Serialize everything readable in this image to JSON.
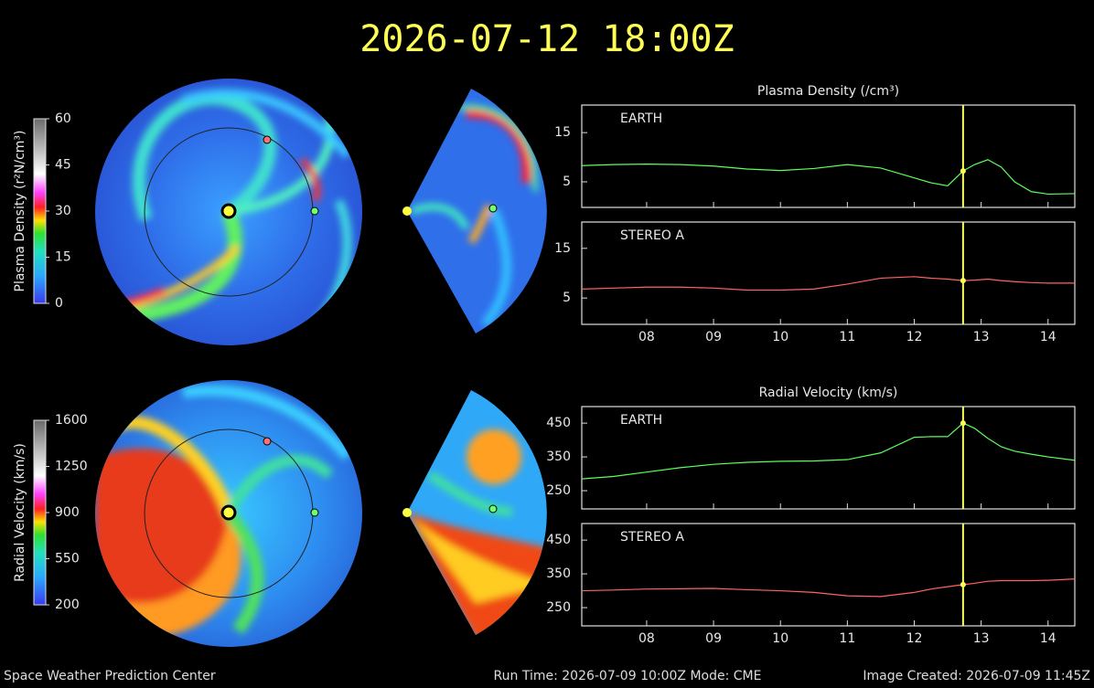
{
  "header": {
    "title": "2026-07-12 18:00Z"
  },
  "colorbars": [
    {
      "label": "Plasma Density (r²N/cm³)",
      "lim": [
        0,
        60
      ],
      "ticks": [
        0,
        15,
        30,
        45,
        60
      ]
    },
    {
      "label": "Radial Velocity (km/s)",
      "lim": [
        200,
        1600
      ],
      "ticks": [
        200,
        550,
        900,
        1250,
        1600
      ]
    }
  ],
  "chart_data": [
    {
      "type": "line",
      "title": "Plasma Density (/cm³)",
      "x": [
        7.03,
        7.5,
        8,
        8.5,
        9,
        9.5,
        10,
        10.5,
        11,
        11.5,
        12,
        12.25,
        12.5,
        12.73,
        12.9,
        13.1,
        13.3,
        13.5,
        13.75,
        14,
        14.4
      ],
      "series": [
        {
          "name": "EARTH",
          "color": "#5cff5c",
          "values": [
            8.3,
            8.5,
            8.6,
            8.5,
            8.2,
            7.6,
            7.3,
            7.7,
            8.5,
            7.8,
            5.8,
            4.8,
            4.2,
            7.2,
            8.5,
            9.5,
            8,
            5,
            3,
            2.5,
            2.6
          ]
        }
      ],
      "xlim": [
        7.03,
        14.4
      ],
      "ylim": [
        -0.2,
        20.6
      ],
      "yticks": [
        5,
        15
      ],
      "marker_x": 12.73,
      "marker_color": "#ffff55"
    },
    {
      "type": "line",
      "x": [
        7.03,
        7.5,
        8,
        8.5,
        9,
        9.5,
        10,
        10.5,
        11,
        11.5,
        12,
        12.25,
        12.5,
        12.73,
        12.9,
        13.1,
        13.3,
        13.5,
        13.75,
        14,
        14.4
      ],
      "series": [
        {
          "name": "STEREO A",
          "color": "#ff6464",
          "values": [
            6.8,
            7.0,
            7.2,
            7.2,
            7.0,
            6.6,
            6.6,
            6.8,
            7.8,
            9.0,
            9.3,
            9.0,
            8.8,
            8.5,
            8.6,
            8.8,
            8.5,
            8.3,
            8.1,
            8.0,
            8.0
          ]
        }
      ],
      "xlim": [
        7.03,
        14.4
      ],
      "ylim": [
        -0.3,
        20.3
      ],
      "yticks": [
        5,
        15
      ],
      "marker_x": 12.73,
      "marker_color": "#ffff55",
      "xticks": [
        {
          "value": 8,
          "label": "08"
        },
        {
          "value": 9,
          "label": "09"
        },
        10,
        11,
        12,
        13,
        14
      ]
    },
    {
      "type": "line",
      "title": "Radial Velocity (km/s)",
      "x": [
        7.03,
        7.5,
        8,
        8.5,
        9,
        9.5,
        10,
        10.5,
        11,
        11.5,
        12,
        12.25,
        12.5,
        12.73,
        12.9,
        13.1,
        13.3,
        13.5,
        13.75,
        14,
        14.4
      ],
      "series": [
        {
          "name": "EARTH",
          "color": "#5cff5c",
          "values": [
            285,
            292,
            305,
            318,
            328,
            334,
            337,
            338,
            342,
            362,
            408,
            410,
            410,
            450,
            435,
            405,
            380,
            367,
            358,
            350,
            340
          ]
        }
      ],
      "xlim": [
        7.03,
        14.4
      ],
      "ylim": [
        196,
        499
      ],
      "yticks": [
        250,
        350,
        450
      ],
      "marker_x": 12.73,
      "marker_color": "#ffff55"
    },
    {
      "type": "line",
      "x": [
        7.03,
        7.5,
        8,
        8.5,
        9,
        9.5,
        10,
        10.5,
        11,
        11.5,
        12,
        12.25,
        12.5,
        12.73,
        12.9,
        13.1,
        13.3,
        13.5,
        13.75,
        14,
        14.4
      ],
      "series": [
        {
          "name": "STEREO A",
          "color": "#ff6464",
          "values": [
            300,
            302,
            305,
            306,
            307,
            303,
            300,
            295,
            285,
            283,
            295,
            305,
            312,
            318,
            322,
            328,
            330,
            330,
            330,
            331,
            335
          ]
        }
      ],
      "xlim": [
        7.03,
        14.4
      ],
      "ylim": [
        196,
        499
      ],
      "yticks": [
        250,
        350,
        450
      ],
      "marker_x": 12.73,
      "marker_color": "#ffff55",
      "xticks": [
        {
          "value": 8,
          "label": "08"
        },
        {
          "value": 9,
          "label": "09"
        },
        10,
        11,
        12,
        13,
        14
      ]
    }
  ],
  "footer": {
    "left": "Space Weather Prediction Center",
    "center": "Run Time: 2026-07-09 10:00Z  Mode: CME",
    "right": "Image Created: 2026-07-09 11:45Z"
  }
}
